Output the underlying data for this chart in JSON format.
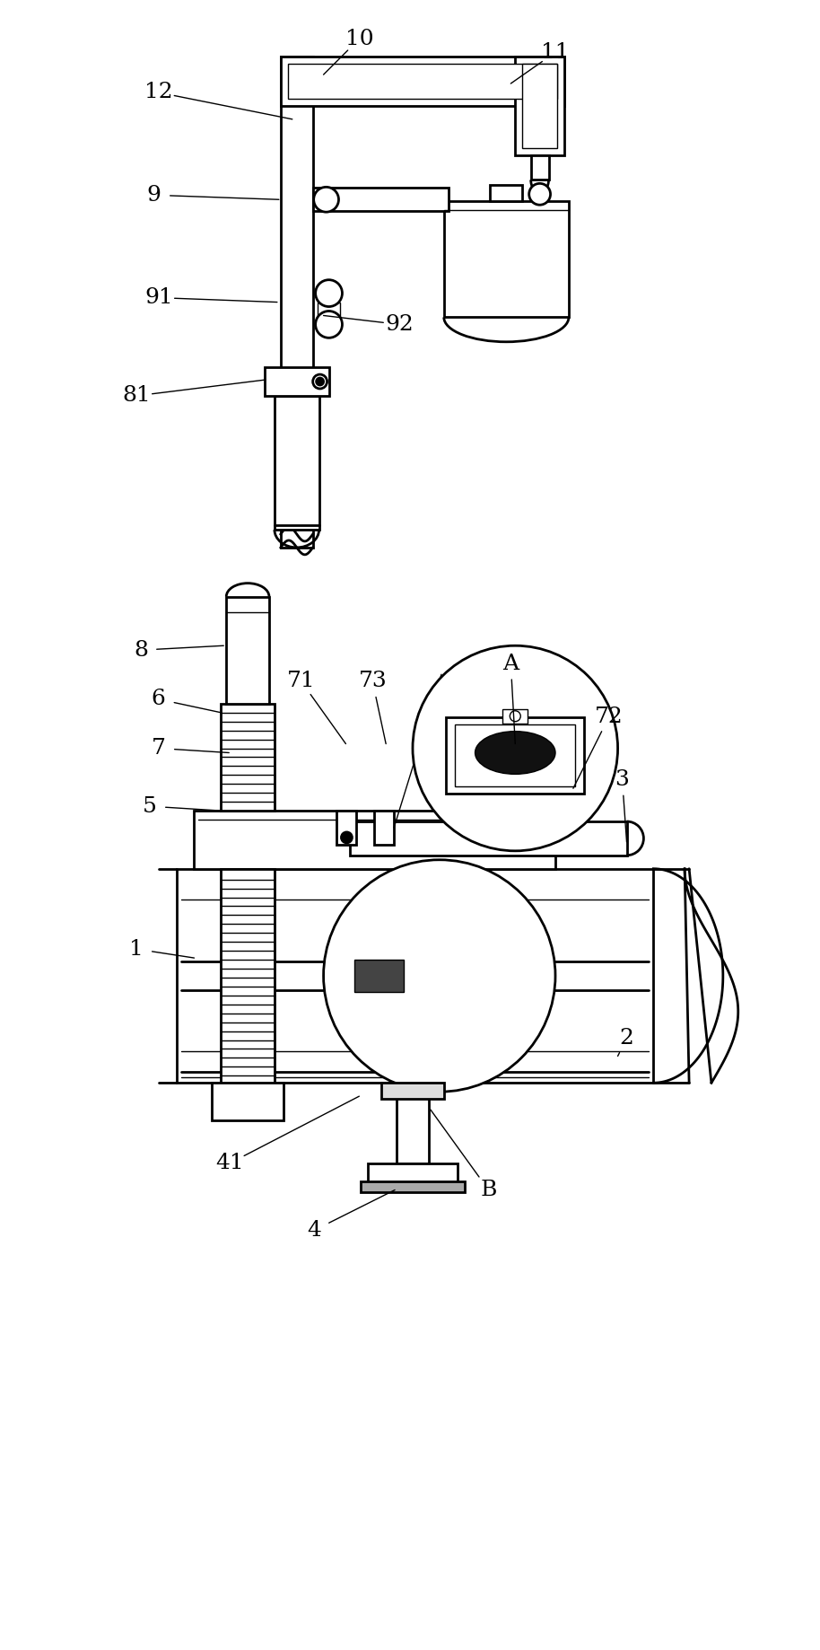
{
  "bg_color": "#ffffff",
  "line_color": "#000000",
  "line_width": 2.0,
  "thin_line": 1.0,
  "thick_line": 2.5,
  "label_fontsize": 18,
  "fig_width": 9.14,
  "fig_height": 18.38
}
